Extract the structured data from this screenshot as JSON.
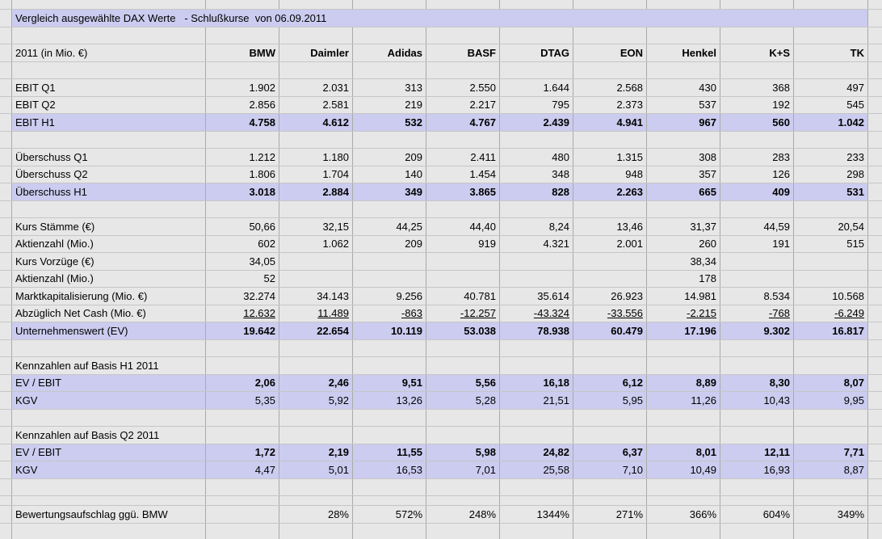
{
  "sheet": {
    "title": "Vergleich ausgewählte DAX Werte   - Schlußkurse  von 06.09.2011",
    "unit_label": "2011 (in Mio. €)",
    "columns": [
      "BMW",
      "Daimler",
      "Adidas",
      "BASF",
      "DTAG",
      "EON",
      "Henkel",
      "K+S",
      "TK"
    ],
    "colors": {
      "highlight": "#ccccf0",
      "background": "#e7e7e7",
      "grid_vertical": "#a9a9a9",
      "grid_horizontal": "#c6c6c6"
    },
    "rows": [
      {
        "type": "spacer"
      },
      {
        "type": "data",
        "style": "plain",
        "label": "EBIT Q1",
        "values": [
          "1.902",
          "2.031",
          "313",
          "2.550",
          "1.644",
          "2.568",
          "430",
          "368",
          "497"
        ]
      },
      {
        "type": "data",
        "style": "plain",
        "label": "EBIT Q2",
        "values": [
          "2.856",
          "2.581",
          "219",
          "2.217",
          "795",
          "2.373",
          "537",
          "192",
          "545"
        ]
      },
      {
        "type": "data",
        "style": "total",
        "label": "EBIT H1",
        "values": [
          "4.758",
          "4.612",
          "532",
          "4.767",
          "2.439",
          "4.941",
          "967",
          "560",
          "1.042"
        ]
      },
      {
        "type": "spacer"
      },
      {
        "type": "data",
        "style": "plain",
        "label": "Überschuss Q1",
        "values": [
          "1.212",
          "1.180",
          "209",
          "2.411",
          "480",
          "1.315",
          "308",
          "283",
          "233"
        ]
      },
      {
        "type": "data",
        "style": "plain",
        "label": "Überschuss Q2",
        "values": [
          "1.806",
          "1.704",
          "140",
          "1.454",
          "348",
          "948",
          "357",
          "126",
          "298"
        ]
      },
      {
        "type": "data",
        "style": "total",
        "label": "Überschuss H1",
        "values": [
          "3.018",
          "2.884",
          "349",
          "3.865",
          "828",
          "2.263",
          "665",
          "409",
          "531"
        ]
      },
      {
        "type": "spacer"
      },
      {
        "type": "data",
        "style": "plain",
        "label": "Kurs Stämme (€)",
        "values": [
          "50,66",
          "32,15",
          "44,25",
          "44,40",
          "8,24",
          "13,46",
          "31,37",
          "44,59",
          "20,54"
        ]
      },
      {
        "type": "data",
        "style": "plain",
        "label": "Aktienzahl (Mio.)",
        "values": [
          "602",
          "1.062",
          "209",
          "919",
          "4.321",
          "2.001",
          "260",
          "191",
          "515"
        ]
      },
      {
        "type": "data",
        "style": "plain",
        "label": "Kurs Vorzüge (€)",
        "values": [
          "34,05",
          "",
          "",
          "",
          "",
          "",
          "38,34",
          "",
          ""
        ]
      },
      {
        "type": "data",
        "style": "plain",
        "label": "Aktienzahl (Mio.)",
        "values": [
          "52",
          "",
          "",
          "",
          "",
          "",
          "178",
          "",
          ""
        ]
      },
      {
        "type": "data",
        "style": "plain",
        "label": "Marktkapitalisierung (Mio. €)",
        "values": [
          "32.274",
          "34.143",
          "9.256",
          "40.781",
          "35.614",
          "26.923",
          "14.981",
          "8.534",
          "10.568"
        ]
      },
      {
        "type": "data",
        "style": "underline",
        "label": "Abzüglich Net Cash (Mio. €)",
        "values": [
          "12.632",
          "11.489",
          "-863",
          "-12.257",
          "-43.324",
          "-33.556",
          "-2.215",
          "-768",
          "-6.249"
        ]
      },
      {
        "type": "data",
        "style": "total",
        "label": "Unternehmenswert (EV)",
        "values": [
          "19.642",
          "22.654",
          "10.119",
          "53.038",
          "78.938",
          "60.479",
          "17.196",
          "9.302",
          "16.817"
        ]
      },
      {
        "type": "spacer"
      },
      {
        "type": "section",
        "label": "Kennzahlen auf Basis H1 2011"
      },
      {
        "type": "data",
        "style": "total",
        "label": "EV / EBIT",
        "values": [
          "2,06",
          "2,46",
          "9,51",
          "5,56",
          "16,18",
          "6,12",
          "8,89",
          "8,30",
          "8,07"
        ]
      },
      {
        "type": "data",
        "style": "hl",
        "label": "KGV",
        "values": [
          "5,35",
          "5,92",
          "13,26",
          "5,28",
          "21,51",
          "5,95",
          "11,26",
          "10,43",
          "9,95"
        ]
      },
      {
        "type": "spacer"
      },
      {
        "type": "section",
        "label": "Kennzahlen auf Basis Q2 2011"
      },
      {
        "type": "data",
        "style": "total",
        "label": "EV / EBIT",
        "values": [
          "1,72",
          "2,19",
          "11,55",
          "5,98",
          "24,82",
          "6,37",
          "8,01",
          "12,11",
          "7,71"
        ]
      },
      {
        "type": "data",
        "style": "hl",
        "label": "KGV",
        "values": [
          "4,47",
          "5,01",
          "16,53",
          "7,01",
          "25,58",
          "7,10",
          "10,49",
          "16,93",
          "8,87"
        ]
      },
      {
        "type": "spacer"
      },
      {
        "type": "spacer-sm"
      },
      {
        "type": "data",
        "style": "plain",
        "label": "Bewertungsaufschlag ggü. BMW",
        "values": [
          "",
          "28%",
          "572%",
          "248%",
          "1344%",
          "271%",
          "366%",
          "604%",
          "349%"
        ]
      }
    ]
  }
}
